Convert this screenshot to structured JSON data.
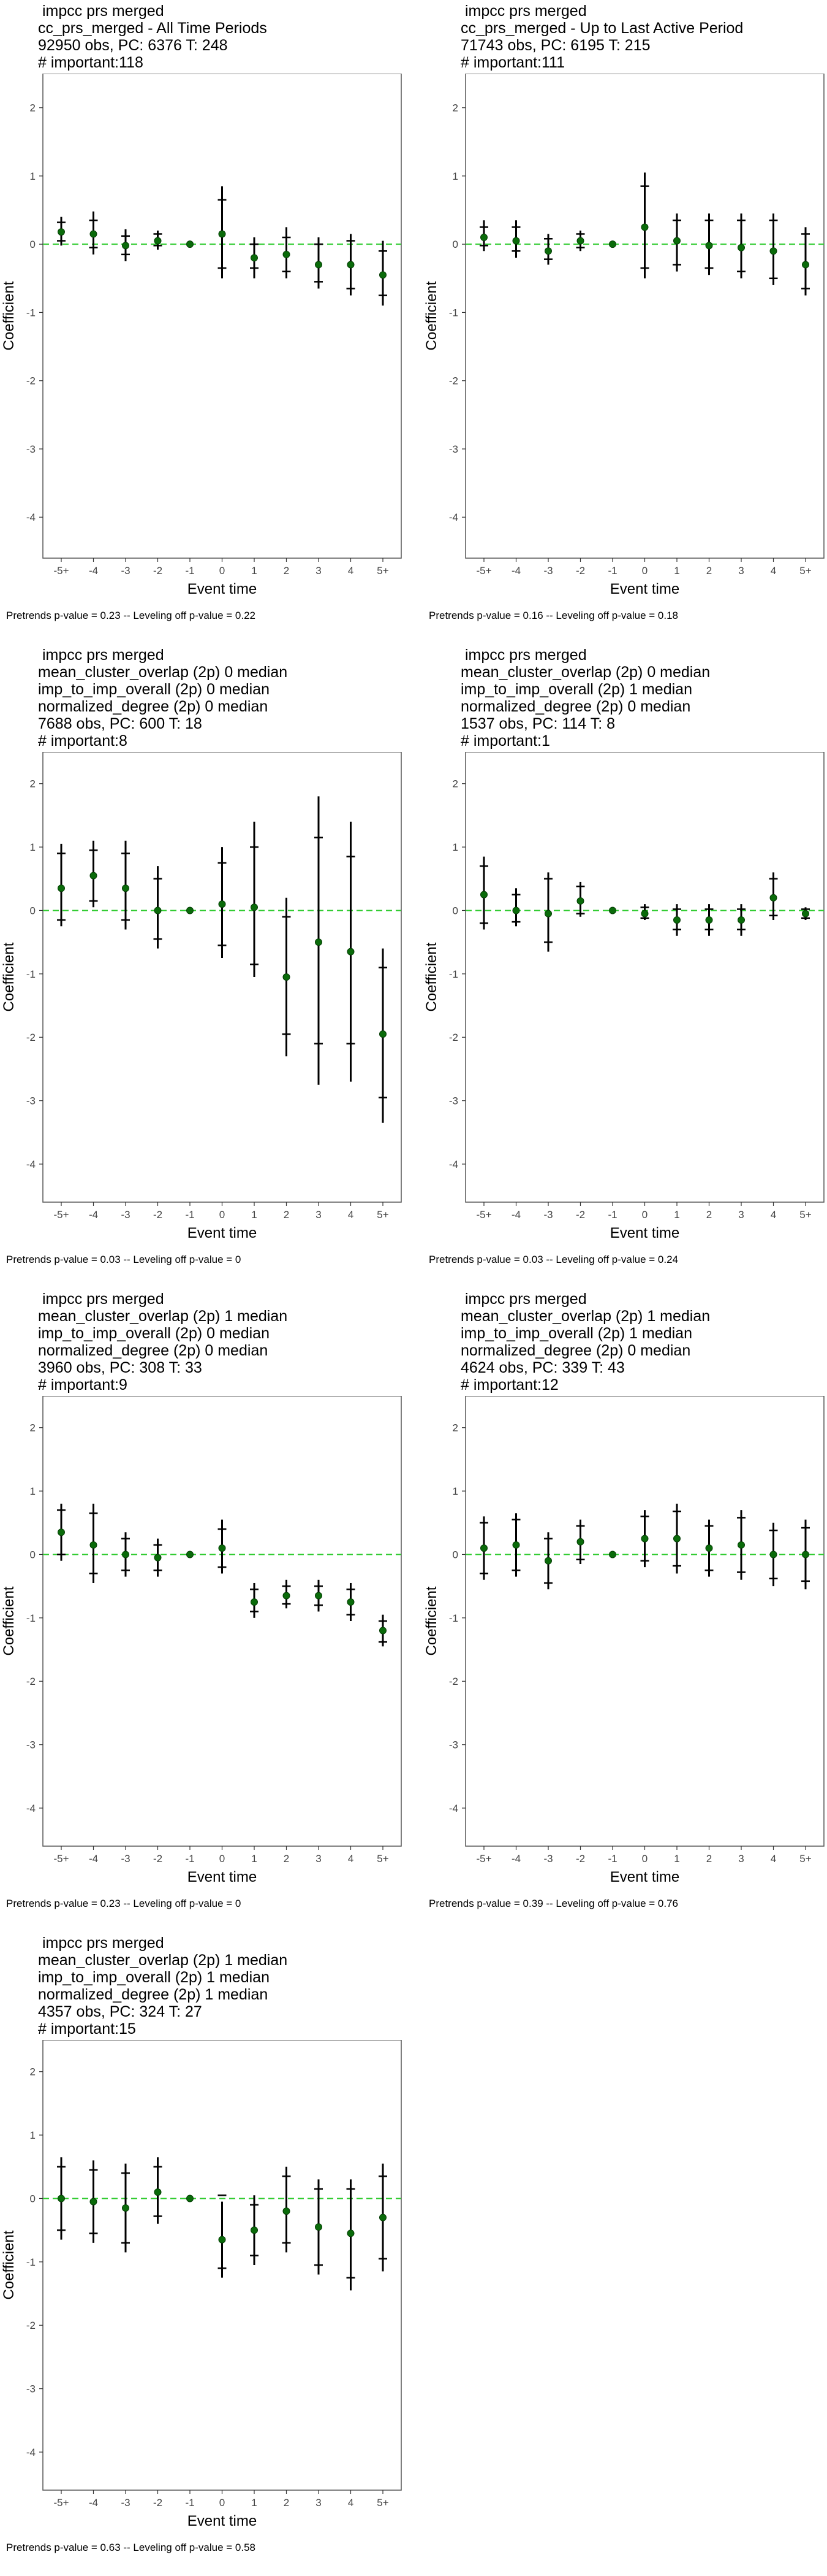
{
  "categories": [
    "-5+",
    "-4",
    "-3",
    "-2",
    "-1",
    "0",
    "1",
    "2",
    "3",
    "4",
    "5+"
  ],
  "yticks": [
    2,
    1,
    0,
    -1,
    -2,
    -3,
    -4
  ],
  "ylim": [
    -4.6,
    2.5
  ],
  "xlabel": "Event time",
  "ylabel": "Coefficient",
  "colors": {
    "point": "#0a6b0a",
    "zero_line": "#33cc33",
    "bar": "#000000"
  },
  "chart_data": [
    {
      "type": "scatter",
      "title_lines": [
        " impcc prs merged",
        "cc_prs_merged - All Time Periods",
        "92950 obs, PC: 6376 T: 248",
        "# important:118"
      ],
      "footnote": "Pretrends p-value = 0.23 -- Leveling off p-value = 0.22",
      "values": [
        0.18,
        0.15,
        -0.02,
        0.05,
        0,
        0.15,
        -0.2,
        -0.15,
        -0.3,
        -0.3,
        -0.45
      ],
      "ci_low": [
        -0.02,
        -0.15,
        -0.25,
        -0.08,
        0,
        -0.5,
        -0.5,
        -0.5,
        -0.65,
        -0.75,
        -0.9
      ],
      "ci_high": [
        0.4,
        0.48,
        0.22,
        0.2,
        0,
        0.85,
        0.1,
        0.25,
        0.1,
        0.15,
        0.05
      ],
      "ci_inner_low": [
        0.05,
        -0.05,
        -0.15,
        -0.02,
        0,
        -0.35,
        -0.35,
        -0.4,
        -0.55,
        -0.65,
        -0.75
      ],
      "ci_inner_high": [
        0.32,
        0.35,
        0.12,
        0.15,
        0,
        0.65,
        0.0,
        0.1,
        0.0,
        0.05,
        -0.1
      ]
    },
    {
      "type": "scatter",
      "title_lines": [
        " impcc prs merged",
        "cc_prs_merged - Up to Last Active Period",
        "71743 obs, PC: 6195 T: 215",
        "# important:111"
      ],
      "footnote": "Pretrends p-value = 0.16 -- Leveling off p-value = 0.18",
      "values": [
        0.1,
        0.05,
        -0.1,
        0.05,
        0,
        0.25,
        0.05,
        -0.02,
        -0.05,
        -0.1,
        -0.3
      ],
      "ci_low": [
        -0.1,
        -0.2,
        -0.3,
        -0.1,
        0,
        -0.5,
        -0.4,
        -0.45,
        -0.5,
        -0.6,
        -0.75
      ],
      "ci_high": [
        0.35,
        0.35,
        0.15,
        0.2,
        0,
        1.05,
        0.45,
        0.45,
        0.45,
        0.45,
        0.25
      ],
      "ci_inner_low": [
        -0.02,
        -0.1,
        -0.22,
        -0.05,
        0,
        -0.35,
        -0.3,
        -0.35,
        -0.4,
        -0.5,
        -0.65
      ],
      "ci_inner_high": [
        0.25,
        0.25,
        0.08,
        0.15,
        0,
        0.85,
        0.35,
        0.35,
        0.35,
        0.35,
        0.15
      ]
    },
    {
      "type": "scatter",
      "title_lines": [
        " impcc prs merged",
        "mean_cluster_overlap (2p) 0 median",
        "imp_to_imp_overall (2p) 0 median",
        "normalized_degree (2p) 0 median",
        "7688 obs, PC: 600 T: 18",
        "# important:8"
      ],
      "footnote": "Pretrends p-value = 0.03 -- Leveling off p-value = 0",
      "values": [
        0.35,
        0.55,
        0.35,
        0.0,
        0,
        0.1,
        0.05,
        -1.05,
        -0.5,
        -0.65,
        -1.95
      ],
      "ci_low": [
        -0.25,
        0.05,
        -0.3,
        -0.6,
        0,
        -0.75,
        -1.05,
        -2.3,
        -2.75,
        -2.7,
        -3.35
      ],
      "ci_high": [
        1.05,
        1.1,
        1.1,
        0.7,
        0,
        1.0,
        1.4,
        0.2,
        1.8,
        1.4,
        -0.6
      ],
      "ci_inner_low": [
        -0.15,
        0.15,
        -0.15,
        -0.45,
        0,
        -0.55,
        -0.85,
        -1.95,
        -2.1,
        -2.1,
        -2.95
      ],
      "ci_inner_high": [
        0.9,
        0.95,
        0.9,
        0.5,
        0,
        0.75,
        1.0,
        -0.1,
        1.15,
        0.85,
        -0.9
      ]
    },
    {
      "type": "scatter",
      "title_lines": [
        " impcc prs merged",
        "mean_cluster_overlap (2p) 0 median",
        "imp_to_imp_overall (2p) 1 median",
        "normalized_degree (2p) 0 median",
        "1537 obs, PC: 114 T: 8",
        "# important:1"
      ],
      "footnote": "Pretrends p-value = 0.03 -- Leveling off p-value = 0.24",
      "values": [
        0.25,
        0.0,
        -0.05,
        0.15,
        0,
        -0.05,
        -0.15,
        -0.15,
        -0.15,
        0.2,
        -0.05
      ],
      "ci_low": [
        -0.3,
        -0.25,
        -0.65,
        -0.1,
        0,
        -0.15,
        -0.4,
        -0.4,
        -0.4,
        -0.15,
        -0.15
      ],
      "ci_high": [
        0.85,
        0.35,
        0.6,
        0.45,
        0,
        0.1,
        0.1,
        0.1,
        0.1,
        0.6,
        0.05
      ],
      "ci_inner_low": [
        -0.2,
        -0.18,
        -0.5,
        -0.05,
        0,
        -0.12,
        -0.3,
        -0.3,
        -0.3,
        -0.08,
        -0.12
      ],
      "ci_inner_high": [
        0.7,
        0.25,
        0.5,
        0.38,
        0,
        0.05,
        0.02,
        0.02,
        0.02,
        0.5,
        0.02
      ]
    },
    {
      "type": "scatter",
      "title_lines": [
        " impcc prs merged",
        "mean_cluster_overlap (2p) 1 median",
        "imp_to_imp_overall (2p) 0 median",
        "normalized_degree (2p) 0 median",
        "3960 obs, PC: 308 T: 33",
        "# important:9"
      ],
      "footnote": "Pretrends p-value = 0.23 -- Leveling off p-value = 0",
      "values": [
        0.35,
        0.15,
        0.0,
        -0.05,
        0,
        0.1,
        -0.75,
        -0.65,
        -0.65,
        -0.75,
        -1.2
      ],
      "ci_low": [
        -0.1,
        -0.45,
        -0.35,
        -0.35,
        0,
        -0.3,
        -1.0,
        -0.85,
        -0.9,
        -1.05,
        -1.45
      ],
      "ci_high": [
        0.8,
        0.8,
        0.35,
        0.25,
        0,
        0.55,
        -0.45,
        -0.4,
        -0.4,
        -0.45,
        -0.95
      ],
      "ci_inner_low": [
        0.0,
        -0.3,
        -0.25,
        -0.25,
        0,
        -0.2,
        -0.9,
        -0.78,
        -0.8,
        -0.95,
        -1.38
      ],
      "ci_inner_high": [
        0.7,
        0.65,
        0.25,
        0.15,
        0,
        0.4,
        -0.55,
        -0.5,
        -0.5,
        -0.55,
        -1.05
      ]
    },
    {
      "type": "scatter",
      "title_lines": [
        " impcc prs merged",
        "mean_cluster_overlap (2p) 1 median",
        "imp_to_imp_overall (2p) 1 median",
        "normalized_degree (2p) 0 median",
        "4624 obs, PC: 339 T: 43",
        "# important:12"
      ],
      "footnote": "Pretrends p-value = 0.39 -- Leveling off p-value = 0.76",
      "values": [
        0.1,
        0.15,
        -0.1,
        0.2,
        0,
        0.25,
        0.25,
        0.1,
        0.15,
        0.0,
        0.0
      ],
      "ci_low": [
        -0.4,
        -0.35,
        -0.55,
        -0.15,
        0,
        -0.2,
        -0.3,
        -0.35,
        -0.4,
        -0.5,
        -0.55
      ],
      "ci_high": [
        0.6,
        0.65,
        0.35,
        0.55,
        0,
        0.7,
        0.8,
        0.55,
        0.7,
        0.5,
        0.55
      ],
      "ci_inner_low": [
        -0.3,
        -0.25,
        -0.45,
        -0.08,
        0,
        -0.1,
        -0.18,
        -0.25,
        -0.28,
        -0.38,
        -0.42
      ],
      "ci_inner_high": [
        0.5,
        0.55,
        0.25,
        0.45,
        0,
        0.6,
        0.68,
        0.45,
        0.58,
        0.38,
        0.42
      ]
    },
    {
      "type": "scatter",
      "title_lines": [
        " impcc prs merged",
        "mean_cluster_overlap (2p) 1 median",
        "imp_to_imp_overall (2p) 1 median",
        "normalized_degree (2p) 1 median",
        "4357 obs, PC: 324 T: 27",
        "# important:15"
      ],
      "footnote": "Pretrends p-value = 0.63 -- Leveling off p-value = 0.58",
      "values": [
        0.0,
        -0.05,
        -0.15,
        0.1,
        0,
        -0.65,
        -0.5,
        -0.2,
        -0.45,
        -0.55,
        -0.3
      ],
      "ci_low": [
        -0.65,
        -0.7,
        -0.85,
        -0.4,
        0,
        -1.25,
        -1.05,
        -0.85,
        -1.2,
        -1.45,
        -1.15
      ],
      "ci_high": [
        0.65,
        0.6,
        0.55,
        0.65,
        0,
        -0.05,
        0.05,
        0.5,
        0.3,
        0.3,
        0.55
      ],
      "ci_inner_low": [
        -0.5,
        -0.55,
        -0.7,
        -0.28,
        0,
        -1.1,
        -0.9,
        -0.7,
        -1.05,
        -1.25,
        -0.95
      ],
      "ci_inner_high": [
        0.5,
        0.45,
        0.4,
        0.5,
        0,
        0.05,
        -0.1,
        0.35,
        0.15,
        0.15,
        0.35
      ]
    }
  ]
}
